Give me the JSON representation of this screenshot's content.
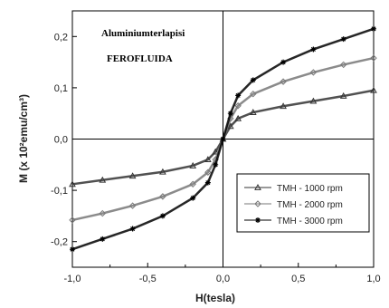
{
  "chart_data": {
    "type": "scatter",
    "xlabel": "H(tesla)",
    "ylabel": "M (x 10²emu/cm³)",
    "xlim": [
      -1.0,
      1.0
    ],
    "ylim": [
      -0.25,
      0.25
    ],
    "x_ticks": [
      "-1,0",
      "-0,5",
      "0,0",
      "0,5",
      "1,0"
    ],
    "y_ticks": [
      "-0,2",
      "-0,1",
      "0,0",
      "0,1",
      "0,2"
    ],
    "annotation_lines": [
      "Aluminiumterlapisi",
      "FEROFLUIDA"
    ],
    "legend_position": "lower-right",
    "grid": false,
    "series": [
      {
        "name": "TMH - 1000 rpm",
        "marker": "triangle",
        "color": "#333333",
        "x": [
          -1.0,
          -0.8,
          -0.6,
          -0.4,
          -0.2,
          -0.1,
          -0.05,
          0.0,
          0.05,
          0.1,
          0.2,
          0.4,
          0.6,
          0.8,
          1.0
        ],
        "y": [
          -0.088,
          -0.08,
          -0.072,
          -0.064,
          -0.052,
          -0.04,
          -0.025,
          0.0,
          0.025,
          0.04,
          0.052,
          0.064,
          0.074,
          0.084,
          0.095
        ]
      },
      {
        "name": "TMH - 2000 rpm",
        "marker": "diamond",
        "color": "#777777",
        "x": [
          -1.0,
          -0.8,
          -0.6,
          -0.4,
          -0.2,
          -0.1,
          -0.05,
          0.0,
          0.05,
          0.1,
          0.2,
          0.4,
          0.6,
          0.8,
          1.0
        ],
        "y": [
          -0.158,
          -0.145,
          -0.13,
          -0.112,
          -0.088,
          -0.065,
          -0.04,
          0.0,
          0.04,
          0.065,
          0.088,
          0.112,
          0.13,
          0.145,
          0.158
        ]
      },
      {
        "name": "TMH - 3000 rpm",
        "marker": "star",
        "color": "#000000",
        "x": [
          -1.0,
          -0.8,
          -0.6,
          -0.4,
          -0.2,
          -0.1,
          -0.05,
          0.0,
          0.05,
          0.1,
          0.2,
          0.4,
          0.6,
          0.8,
          1.0
        ],
        "y": [
          -0.215,
          -0.195,
          -0.175,
          -0.15,
          -0.115,
          -0.085,
          -0.05,
          0.0,
          0.05,
          0.085,
          0.115,
          0.15,
          0.175,
          0.195,
          0.215
        ]
      }
    ]
  }
}
